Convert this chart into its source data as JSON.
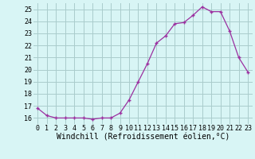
{
  "x": [
    0,
    1,
    2,
    3,
    4,
    5,
    6,
    7,
    8,
    9,
    10,
    11,
    12,
    13,
    14,
    15,
    16,
    17,
    18,
    19,
    20,
    21,
    22,
    23
  ],
  "y": [
    16.8,
    16.2,
    16.0,
    16.0,
    16.0,
    16.0,
    15.9,
    16.0,
    16.0,
    16.4,
    17.5,
    19.0,
    20.5,
    22.2,
    22.8,
    23.8,
    23.9,
    24.5,
    25.2,
    24.8,
    24.8,
    23.2,
    21.0,
    19.8
  ],
  "line_color": "#9b30a0",
  "marker": "+",
  "marker_size": 3,
  "bg_color": "#d8f5f5",
  "grid_color": "#aacccc",
  "xlabel": "Windchill (Refroidissement éolien,°C)",
  "xlabel_fontsize": 7,
  "tick_fontsize": 6,
  "ylim": [
    15.5,
    25.5
  ],
  "xlim": [
    -0.5,
    23.5
  ],
  "yticks": [
    16,
    17,
    18,
    19,
    20,
    21,
    22,
    23,
    24,
    25
  ],
  "xticks": [
    0,
    1,
    2,
    3,
    4,
    5,
    6,
    7,
    8,
    9,
    10,
    11,
    12,
    13,
    14,
    15,
    16,
    17,
    18,
    19,
    20,
    21,
    22,
    23
  ]
}
